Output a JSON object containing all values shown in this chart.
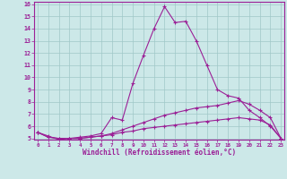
{
  "x": [
    0,
    1,
    2,
    3,
    4,
    5,
    6,
    7,
    8,
    9,
    10,
    11,
    12,
    13,
    14,
    15,
    16,
    17,
    18,
    19,
    20,
    21,
    22,
    23
  ],
  "line1": [
    5.5,
    5.2,
    4.9,
    5.0,
    5.1,
    5.2,
    5.4,
    6.7,
    6.5,
    9.5,
    11.8,
    14.0,
    15.8,
    14.5,
    14.6,
    13.0,
    11.0,
    9.0,
    8.5,
    8.3,
    7.3,
    6.7,
    6.0,
    5.0
  ],
  "line2": [
    5.5,
    5.1,
    5.0,
    5.0,
    5.0,
    5.1,
    5.2,
    5.4,
    5.7,
    6.0,
    6.3,
    6.6,
    6.9,
    7.1,
    7.3,
    7.5,
    7.6,
    7.7,
    7.9,
    8.1,
    7.8,
    7.3,
    6.7,
    5.0
  ],
  "line3": [
    5.5,
    5.1,
    5.0,
    5.0,
    5.0,
    5.1,
    5.2,
    5.3,
    5.5,
    5.6,
    5.8,
    5.9,
    6.0,
    6.1,
    6.2,
    6.3,
    6.4,
    6.5,
    6.6,
    6.7,
    6.6,
    6.5,
    6.1,
    5.0
  ],
  "line_color": "#9b1f96",
  "bg_color": "#cce8e8",
  "grid_color": "#a0c8c8",
  "ylim_min": 5,
  "ylim_max": 16,
  "xlim_min": 0,
  "xlim_max": 23,
  "yticks": [
    5,
    6,
    7,
    8,
    9,
    10,
    11,
    12,
    13,
    14,
    15,
    16
  ],
  "xticks": [
    0,
    1,
    2,
    3,
    4,
    5,
    6,
    7,
    8,
    9,
    10,
    11,
    12,
    13,
    14,
    15,
    16,
    17,
    18,
    19,
    20,
    21,
    22,
    23
  ],
  "xlabel": "Windchill (Refroidissement éolien,°C)",
  "xlabel_color": "#9b1f96",
  "tick_color": "#9b1f96",
  "spine_color": "#9b1f96"
}
